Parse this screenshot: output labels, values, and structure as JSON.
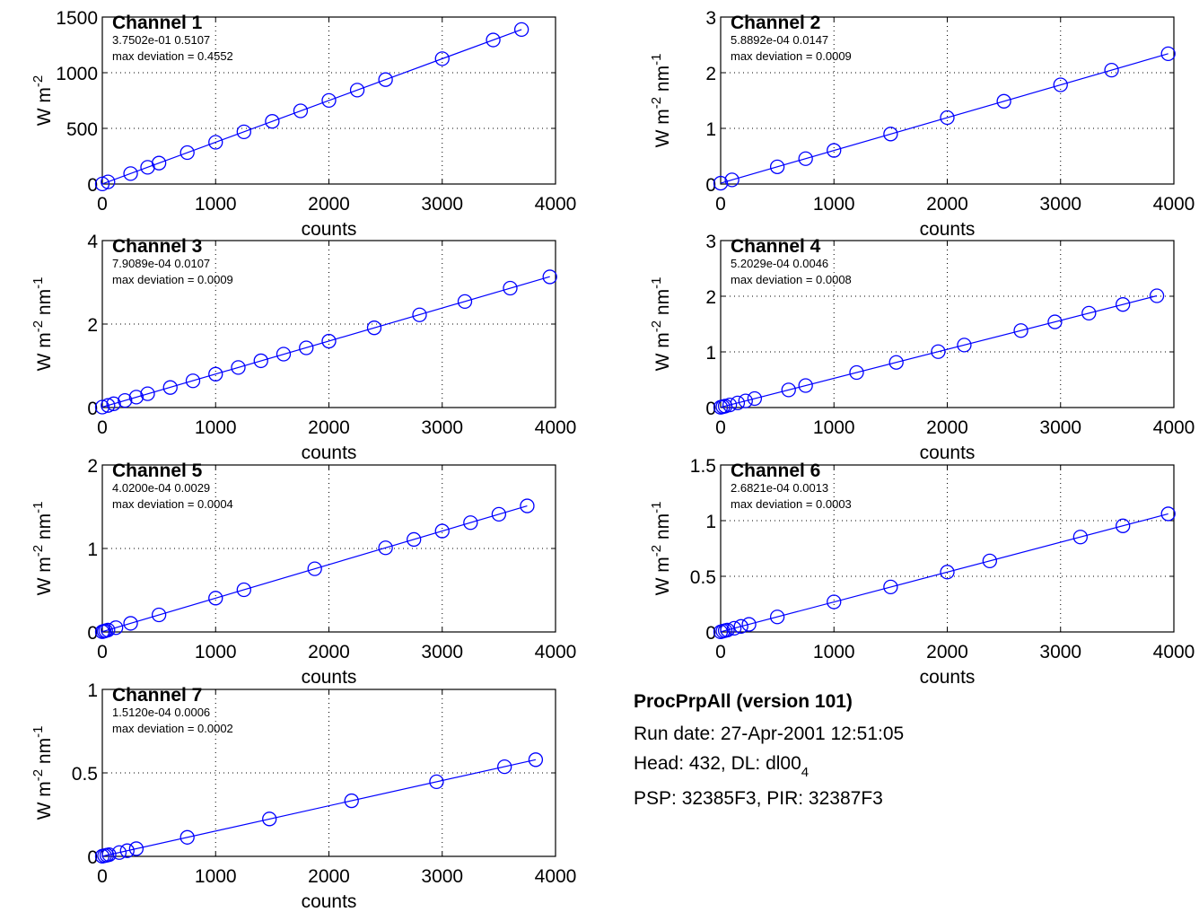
{
  "colors": {
    "series": "#0000ff",
    "axes": "#000000",
    "grid": "#000000"
  },
  "chart_data": [
    {
      "type": "scatter",
      "title": "Channel 1",
      "fit_coefficients": "3.7502e-01   0.5107",
      "max_deviation": "max deviation = 0.4552",
      "xlabel": "counts",
      "ylabel": "W m",
      "ylabel_sup": "-2",
      "ylabel_tail": "",
      "ylabel_tail_sup": "",
      "xlim": [
        0,
        4000
      ],
      "ylim": [
        0,
        1500
      ],
      "xticks": [
        "0",
        "1000",
        "2000",
        "3000",
        "4000"
      ],
      "yticks": [
        "0",
        "500",
        "1000",
        "1500"
      ],
      "grid": true,
      "fit_line": {
        "x": [
          0,
          3700
        ],
        "y": [
          0.51,
          1388.1
        ]
      },
      "series": [
        {
          "marker": "circle",
          "x": [
            0,
            50,
            250,
            400,
            500,
            750,
            1000,
            1250,
            1500,
            1750,
            2000,
            2250,
            2500,
            3000,
            3450,
            3700
          ],
          "y": [
            1,
            19,
            94,
            150,
            188,
            282,
            375,
            469,
            563,
            657,
            751,
            844,
            938,
            1126,
            1294,
            1388
          ]
        }
      ]
    },
    {
      "type": "scatter",
      "title": "Channel 2",
      "fit_coefficients": "5.8892e-04   0.0147",
      "max_deviation": "max deviation = 0.0009",
      "xlabel": "counts",
      "ylabel": "W m",
      "ylabel_sup": "-2",
      "ylabel_tail": " nm",
      "ylabel_tail_sup": "-1",
      "xlim": [
        0,
        4000
      ],
      "ylim": [
        0,
        3
      ],
      "xticks": [
        "0",
        "1000",
        "2000",
        "3000",
        "4000"
      ],
      "yticks": [
        "0",
        "1",
        "2",
        "3"
      ],
      "grid": true,
      "fit_line": {
        "x": [
          0,
          3950
        ],
        "y": [
          0.0147,
          2.341
        ]
      },
      "series": [
        {
          "marker": "circle",
          "x": [
            0,
            100,
            500,
            750,
            1000,
            1500,
            2000,
            2500,
            3000,
            3450,
            3950
          ],
          "y": [
            0.015,
            0.074,
            0.309,
            0.456,
            0.604,
            0.898,
            1.193,
            1.487,
            1.782,
            2.046,
            2.341
          ]
        }
      ]
    },
    {
      "type": "scatter",
      "title": "Channel 3",
      "fit_coefficients": "7.9089e-04   0.0107",
      "max_deviation": "max deviation = 0.0009",
      "xlabel": "counts",
      "ylabel": "W m",
      "ylabel_sup": "-2",
      "ylabel_tail": " nm",
      "ylabel_tail_sup": "-1",
      "xlim": [
        0,
        4000
      ],
      "ylim": [
        0,
        4
      ],
      "xticks": [
        "0",
        "1000",
        "2000",
        "3000",
        "4000"
      ],
      "yticks": [
        "0",
        "2",
        "4"
      ],
      "grid": true,
      "fit_line": {
        "x": [
          0,
          3950
        ],
        "y": [
          0.0107,
          3.135
        ]
      },
      "series": [
        {
          "marker": "circle",
          "x": [
            0,
            50,
            100,
            200,
            300,
            400,
            600,
            800,
            1000,
            1200,
            1400,
            1600,
            1800,
            2000,
            2400,
            2800,
            3200,
            3600,
            3950
          ],
          "y": [
            0.01,
            0.05,
            0.09,
            0.17,
            0.25,
            0.33,
            0.48,
            0.64,
            0.8,
            0.96,
            1.12,
            1.28,
            1.43,
            1.59,
            1.91,
            2.22,
            2.54,
            2.86,
            3.13
          ]
        }
      ]
    },
    {
      "type": "scatter",
      "title": "Channel 4",
      "fit_coefficients": "5.2029e-04   0.0046",
      "max_deviation": "max deviation = 0.0008",
      "xlabel": "counts",
      "ylabel": "W m",
      "ylabel_sup": "-2",
      "ylabel_tail": " nm",
      "ylabel_tail_sup": "-1",
      "xlim": [
        0,
        4000
      ],
      "ylim": [
        0,
        3
      ],
      "xticks": [
        "0",
        "1000",
        "2000",
        "3000",
        "4000"
      ],
      "yticks": [
        "0",
        "1",
        "2",
        "3"
      ],
      "grid": true,
      "fit_line": {
        "x": [
          0,
          3850
        ],
        "y": [
          0.0046,
          2.008
        ]
      },
      "series": [
        {
          "marker": "circle",
          "x": [
            0,
            20,
            40,
            80,
            150,
            220,
            300,
            600,
            750,
            1200,
            1550,
            1920,
            2150,
            2650,
            2950,
            3250,
            3550,
            3850
          ],
          "y": [
            0.005,
            0.015,
            0.025,
            0.046,
            0.083,
            0.119,
            0.161,
            0.317,
            0.395,
            0.629,
            0.811,
            1.004,
            1.123,
            1.383,
            1.539,
            1.696,
            1.852,
            2.008
          ]
        }
      ]
    },
    {
      "type": "scatter",
      "title": "Channel 5",
      "fit_coefficients": "4.0200e-04   0.0029",
      "max_deviation": "max deviation = 0.0004",
      "xlabel": "counts",
      "ylabel": "W m",
      "ylabel_sup": "-2",
      "ylabel_tail": " nm",
      "ylabel_tail_sup": "-1",
      "xlim": [
        0,
        4000
      ],
      "ylim": [
        0,
        2
      ],
      "xticks": [
        "0",
        "1000",
        "2000",
        "3000",
        "4000"
      ],
      "yticks": [
        "0",
        "1",
        "2"
      ],
      "grid": true,
      "fit_line": {
        "x": [
          0,
          3750
        ],
        "y": [
          0.0029,
          1.5104
        ]
      },
      "series": [
        {
          "marker": "circle",
          "x": [
            0,
            15,
            30,
            50,
            120,
            250,
            500,
            1000,
            1250,
            1875,
            2500,
            2750,
            3000,
            3250,
            3500,
            3750
          ],
          "y": [
            0.003,
            0.009,
            0.015,
            0.023,
            0.051,
            0.103,
            0.204,
            0.405,
            0.505,
            0.757,
            1.008,
            1.108,
            1.209,
            1.309,
            1.41,
            1.51
          ]
        }
      ]
    },
    {
      "type": "scatter",
      "title": "Channel 6",
      "fit_coefficients": "2.6821e-04   0.0013",
      "max_deviation": "max deviation = 0.0003",
      "xlabel": "counts",
      "ylabel": "W m",
      "ylabel_sup": "-2",
      "ylabel_tail": " nm",
      "ylabel_tail_sup": "-1",
      "xlim": [
        0,
        4000
      ],
      "ylim": [
        0,
        1.5
      ],
      "xticks": [
        "0",
        "1000",
        "2000",
        "3000",
        "4000"
      ],
      "yticks": [
        "0",
        "0.5",
        "1",
        "1.5"
      ],
      "grid": true,
      "fit_line": {
        "x": [
          0,
          3950
        ],
        "y": [
          0.0013,
          1.0607
        ]
      },
      "series": [
        {
          "marker": "circle",
          "x": [
            0,
            20,
            40,
            60,
            120,
            180,
            250,
            500,
            1000,
            1500,
            2000,
            2375,
            3175,
            3550,
            3950
          ],
          "y": [
            0.001,
            0.007,
            0.012,
            0.017,
            0.033,
            0.05,
            0.068,
            0.135,
            0.27,
            0.404,
            0.538,
            0.638,
            0.853,
            0.953,
            1.061
          ]
        }
      ]
    },
    {
      "type": "scatter",
      "title": "Channel 7",
      "fit_coefficients": "1.5120e-04   0.0006",
      "max_deviation": "max deviation = 0.0002",
      "xlabel": "counts",
      "ylabel": "W m",
      "ylabel_sup": "-2",
      "ylabel_tail": " nm",
      "ylabel_tail_sup": "-1",
      "xlim": [
        0,
        4000
      ],
      "ylim": [
        0,
        1
      ],
      "xticks": [
        "0",
        "1000",
        "2000",
        "3000",
        "4000"
      ],
      "yticks": [
        "0",
        "0.5",
        "1"
      ],
      "grid": true,
      "fit_line": {
        "x": [
          0,
          3825
        ],
        "y": [
          0.0006,
          0.579
        ]
      },
      "series": [
        {
          "marker": "circle",
          "x": [
            0,
            20,
            40,
            60,
            150,
            220,
            300,
            750,
            1475,
            2200,
            2950,
            3550,
            3825
          ],
          "y": [
            0.001,
            0.004,
            0.007,
            0.01,
            0.023,
            0.034,
            0.046,
            0.114,
            0.224,
            0.333,
            0.447,
            0.537,
            0.579
          ]
        }
      ]
    }
  ],
  "info": {
    "title": "ProcPrpAll (version 101)",
    "run_date": "Run date: 27-Apr-2001 12:51:05",
    "head": "Head: 432, DL: dl00",
    "head_sub": "4",
    "instruments": "PSP: 32385F3,  PIR: 32387F3"
  }
}
